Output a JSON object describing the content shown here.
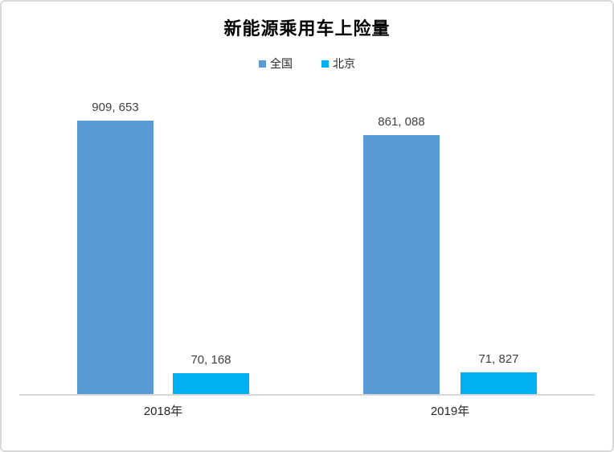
{
  "chart_data": {
    "type": "bar",
    "title": "新能源乘用车上险量",
    "categories": [
      "2018年",
      "2019年"
    ],
    "series": [
      {
        "name": "全国",
        "color": "#5B9BD5",
        "values": [
          909653,
          861088
        ],
        "labels": [
          "909, 653",
          "861, 088"
        ]
      },
      {
        "name": "北京",
        "color": "#00B0F0",
        "values": [
          70168,
          71827
        ],
        "labels": [
          "70, 168",
          "71, 827"
        ]
      }
    ],
    "ylim": [
      0,
      1000000
    ],
    "grid": false,
    "legend_position": "top",
    "data_labels": true,
    "axis_line_color": "#D9D9D9",
    "border_color": "#D9D9D9"
  }
}
